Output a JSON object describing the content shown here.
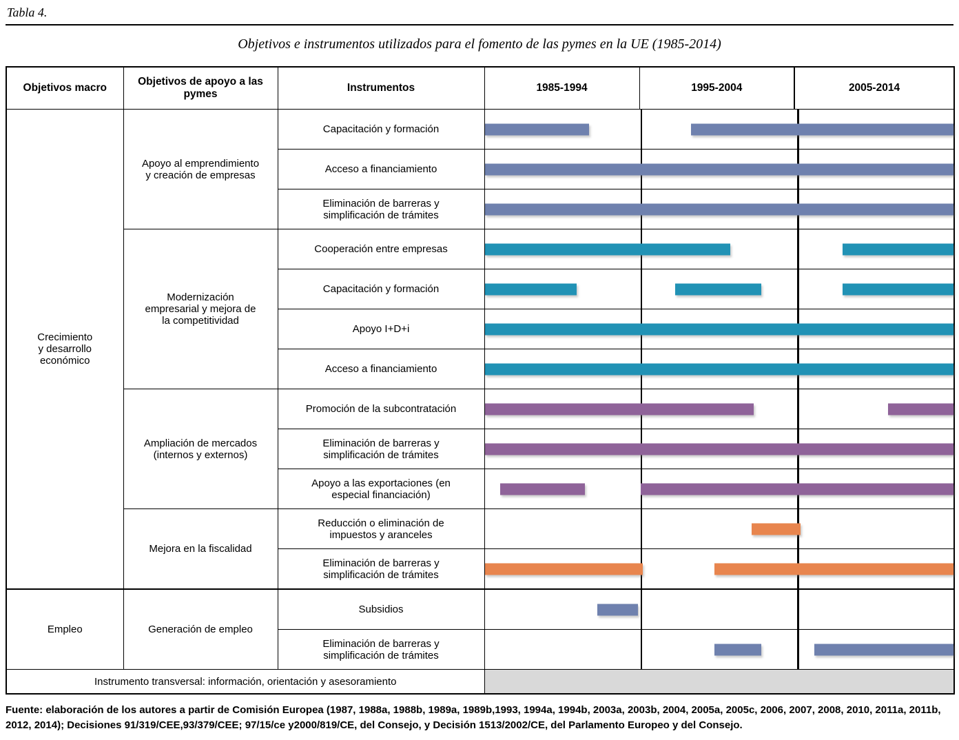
{
  "page": {
    "table_label": "Tabla 4.",
    "title": "Objetivos e instrumentos utilizados para el fomento de las pymes en la UE (1985-2014)",
    "source": "Fuente: elaboración de los autores a partir de Comisión Europea (1987, 1988a, 1988b, 1989a, 1989b,1993, 1994a, 1994b, 2003a, 2003b, 2004, 2005a, 2005c, 2006, 2007, 2008, 2010, 2011a, 2011b, 2012, 2014); Decisiones 91/319/CEE,93/379/CEE; 97/15/ce y2000/819/CE, del Consejo, y Decisión 1513/2002/CE, del Parlamento Europeo y del Consejo."
  },
  "chart_data": {
    "type": "table",
    "subtype": "gantt-timeline",
    "columns": [
      "Objetivos macro",
      "Objetivos de apoyo a las\npymes",
      "Instrumentos",
      "1985-1994",
      "1995-2004",
      "2005-2014"
    ],
    "timeline": {
      "start": 1985,
      "end": 2015,
      "period_boundaries": [
        1995,
        2005
      ]
    },
    "colors": {
      "slate": "#6F81AE",
      "teal": "#2192B5",
      "purple": "#8F6399",
      "orange": "#E8854E"
    },
    "macro_groups": [
      {
        "label": "Crecimiento\ny desarrollo\neconómico",
        "rowspan": 12
      },
      {
        "label": "Empleo",
        "rowspan": 2
      }
    ],
    "objetivo_groups": [
      {
        "label": "Apoyo al emprendimiento\ny creación de empresas",
        "rowspan": 3
      },
      {
        "label": "Modernización\nempresarial y mejora de\nla competitividad",
        "rowspan": 4
      },
      {
        "label": "Ampliación de mercados\n(internos y externos)",
        "rowspan": 3
      },
      {
        "label": "Mejora en la fiscalidad",
        "rowspan": 2
      },
      {
        "label": "Generación de empleo",
        "rowspan": 2
      }
    ],
    "rows": [
      {
        "instrumento": "Capacitación y formación",
        "color": "slate",
        "bars": [
          [
            1985,
            1991.7
          ],
          [
            1998.2,
            2015
          ]
        ]
      },
      {
        "instrumento": "Acceso a financiamiento",
        "color": "slate",
        "bars": [
          [
            1985,
            2015
          ]
        ]
      },
      {
        "instrumento": "Eliminación de barreras y\nsimplificación de trámites",
        "color": "slate",
        "bars": [
          [
            1985,
            2015
          ]
        ]
      },
      {
        "instrumento": "Cooperación entre empresas",
        "color": "teal",
        "bars": [
          [
            1985,
            2000.7
          ],
          [
            2007.9,
            2015
          ]
        ]
      },
      {
        "instrumento": "Capacitación y formación",
        "color": "teal",
        "bars": [
          [
            1985,
            1990.9
          ],
          [
            1997.2,
            2002.7
          ],
          [
            2007.9,
            2015
          ]
        ]
      },
      {
        "instrumento": "Apoyo I+D+i",
        "color": "teal",
        "bars": [
          [
            1985,
            2015
          ]
        ]
      },
      {
        "instrumento": "Acceso a financiamiento",
        "color": "teal",
        "bars": [
          [
            1985,
            2015
          ]
        ]
      },
      {
        "instrumento": "Promoción de la subcontratación",
        "color": "purple",
        "bars": [
          [
            1985,
            2002.2
          ],
          [
            2010.8,
            2015
          ]
        ]
      },
      {
        "instrumento": "Eliminación de barreras y\nsimplificación de trámites",
        "color": "purple",
        "bars": [
          [
            1985,
            2015
          ]
        ]
      },
      {
        "instrumento": "Apoyo a las exportaciones (en\nespecial financiación)",
        "color": "purple",
        "bars": [
          [
            1986,
            1991.4
          ],
          [
            1995,
            2015
          ]
        ]
      },
      {
        "instrumento": "Reducción o eliminación de\nimpuestos y aranceles",
        "color": "orange",
        "bars": [
          [
            2002.1,
            2005.2
          ]
        ]
      },
      {
        "instrumento": "Eliminación de barreras y\nsimplificación de trámites",
        "color": "orange",
        "bars": [
          [
            1985,
            1995.1
          ],
          [
            1999.7,
            2015
          ]
        ]
      },
      {
        "instrumento": "Subsidios",
        "color": "slate",
        "bars": [
          [
            1992.2,
            1994.8
          ]
        ]
      },
      {
        "instrumento": "Eliminación de barreras y\nsimplificación de trámites",
        "color": "slate",
        "bars": [
          [
            1999.7,
            2002.7
          ],
          [
            2006.1,
            2015
          ]
        ]
      }
    ],
    "transversal": {
      "label": "Instrumento transversal: información, orientación y asesoramiento",
      "fill": "#D9D9D9",
      "span": [
        1985,
        2015
      ]
    }
  }
}
